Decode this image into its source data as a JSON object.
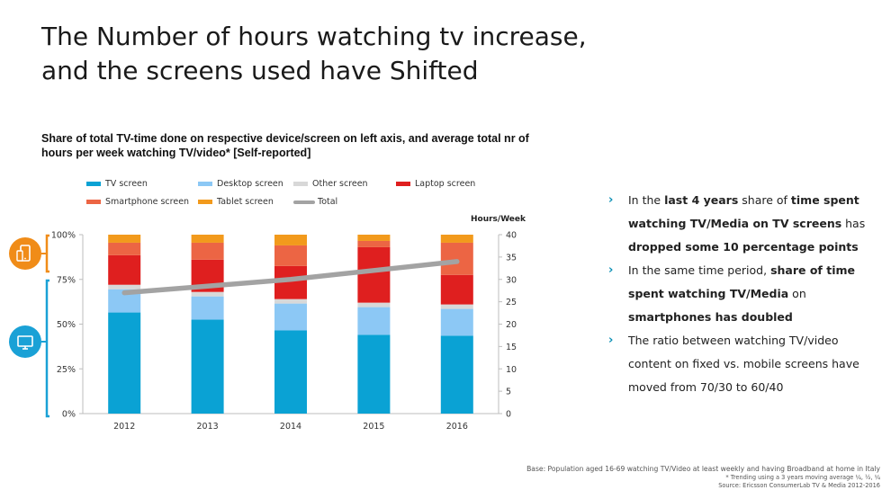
{
  "slide": {
    "title_line1": "The Number of hours watching tv increase,",
    "title_line2": "and the screens used have Shifted"
  },
  "chart_data": {
    "type": "bar",
    "stacked": true,
    "title": "Share of total TV-time done on respective device/screen on left axis, and average total nr of hours per week watching TV/video* [Self-reported]",
    "categories": [
      "2012",
      "2013",
      "2014",
      "2015",
      "2016"
    ],
    "ylim_left": [
      0,
      100
    ],
    "yticks_left": [
      "0%",
      "25%",
      "50%",
      "75%",
      "100%"
    ],
    "ylabel_right": "Hours/Week",
    "ylim_right": [
      0,
      40
    ],
    "yticks_right": [
      "0",
      "5",
      "10",
      "15",
      "20",
      "25",
      "30",
      "35",
      "40"
    ],
    "legend_position": "top",
    "series": [
      {
        "name": "TV screen",
        "color": "#0aa2d4",
        "values": [
          56.5,
          52.5,
          46.5,
          44,
          43.5
        ]
      },
      {
        "name": "Desktop screen",
        "color": "#8cc8f5",
        "values": [
          13,
          13,
          15,
          15.5,
          15
        ]
      },
      {
        "name": "Other screen",
        "color": "#d8d8d8",
        "values": [
          2.5,
          2.5,
          2.5,
          2.5,
          2.5
        ]
      },
      {
        "name": "Laptop screen",
        "color": "#df1f1f",
        "values": [
          16.5,
          18,
          18.5,
          31,
          16.5
        ]
      },
      {
        "name": "Smartphone screen",
        "color": "#ec6544",
        "values": [
          7,
          9.5,
          11.5,
          3.5,
          18
        ]
      },
      {
        "name": "Tablet screen",
        "color": "#f29a1c",
        "values": [
          4.5,
          4.5,
          6,
          3.5,
          4.5
        ]
      }
    ],
    "line_series": {
      "name": "Total",
      "color": "#a3a3a3",
      "axis": "right",
      "values": [
        27,
        28.5,
        30,
        32,
        34
      ]
    },
    "legend_order": [
      "TV screen",
      "Desktop screen",
      "Other screen",
      "Laptop screen",
      "Smartphone screen",
      "Tablet screen",
      "Total"
    ]
  },
  "bullets": [
    {
      "parts": [
        {
          "text": "In the ",
          "bold": false
        },
        {
          "text": "last 4 years",
          "bold": true
        },
        {
          "text": " share of ",
          "bold": false
        },
        {
          "text": "time spent watching TV/Media on TV screens",
          "bold": true
        },
        {
          "text": " has ",
          "bold": false
        },
        {
          "text": "dropped some 10 percentage points",
          "bold": true
        }
      ]
    },
    {
      "parts": [
        {
          "text": "In the same time period, ",
          "bold": false
        },
        {
          "text": "share of time spent watching TV/Media",
          "bold": true
        },
        {
          "text": " on ",
          "bold": false
        },
        {
          "text": "smartphones has doubled",
          "bold": true
        }
      ]
    },
    {
      "parts": [
        {
          "text": "The ratio between watching TV/video content on fixed vs. mobile screens have moved from 70/30 to 60/40",
          "bold": false
        }
      ]
    }
  ],
  "bullet_marker": "›",
  "footnotes": {
    "base": "Base: Population aged 16-69 watching TV/Video at least weekly and having Broadband at home in Italy",
    "trend": "* Trending using a 3 years moving average ¼, ½, ¼",
    "source": "Source: Ericsson ConsumerLab TV & Media 2012-2016"
  },
  "icons": {
    "mobile": "mobile-devices-icon",
    "tv": "tv-screen-icon",
    "mobile_color": "#f08c18",
    "tv_color": "#1aa1d6"
  }
}
